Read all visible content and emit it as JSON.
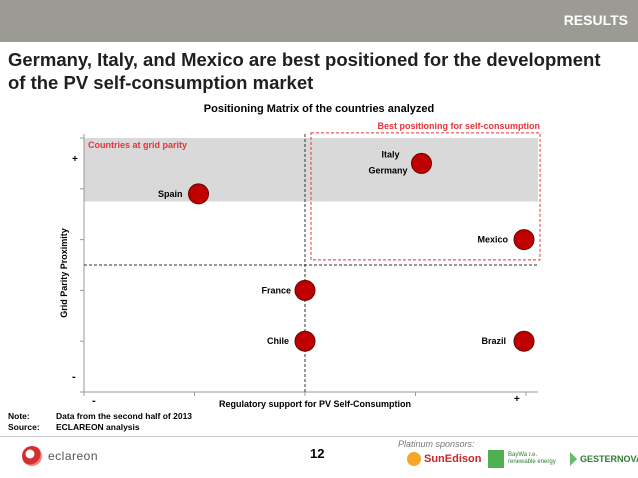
{
  "header": {
    "section": "RESULTS"
  },
  "title": "Germany, Italy, and Mexico are best positioned for the development of the PV self-consumption market",
  "chart_data": {
    "type": "scatter",
    "title": "Positioning Matrix of the countries analyzed",
    "xlabel": "Regulatory support for PV Self-Consumption",
    "ylabel": "Grid Parity Proximity",
    "x_tick_labels": {
      "min": "-",
      "max": "+"
    },
    "y_tick_labels": {
      "min": "-",
      "max": "+"
    },
    "xlim": [
      0,
      4
    ],
    "ylim": [
      0,
      5
    ],
    "divider_x": 2,
    "divider_y": 2.5,
    "grid_parity_band": {
      "label": "Countries at grid parity",
      "y_from": 3.75,
      "y_to": 5
    },
    "best_zone": {
      "label": "Best positioning for self-consumption",
      "x_from": 2,
      "x_to": 4,
      "y_from": 2.6,
      "y_to": 5.1
    },
    "points": [
      {
        "label": "Italy",
        "x": 3,
        "y": 4.5
      },
      {
        "label": "Germany",
        "x": 3,
        "y": 4.5
      },
      {
        "label": "Spain",
        "x": 1,
        "y": 3.9
      },
      {
        "label": "Mexico",
        "x": 4,
        "y": 3
      },
      {
        "label": "France",
        "x": 2,
        "y": 2
      },
      {
        "label": "Chile",
        "x": 2,
        "y": 1
      },
      {
        "label": "Brazil",
        "x": 4,
        "y": 1
      }
    ],
    "point_color": "#c00000",
    "zone_color": "#e8333a"
  },
  "notes": [
    {
      "key": "Note:",
      "value": "Data from the second half of 2013"
    },
    {
      "key": "Source:",
      "value": "ECLAREON analysis"
    }
  ],
  "footer": {
    "page_number": "12",
    "sponsors_label": "Platinum sponsors:",
    "logo_eclareon": "eclareon",
    "logo_sunedison": "SunEdison",
    "logo_baywa_name": "BayWa r.e.",
    "logo_baywa_tagline": "renewable energy",
    "logo_gesternova": "GESTERNOVA"
  }
}
